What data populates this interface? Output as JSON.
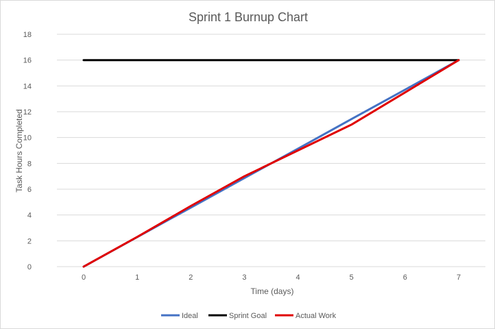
{
  "chart_data": {
    "type": "line",
    "title": "Sprint 1 Burnup Chart",
    "xlabel": "Time (days)",
    "ylabel": "Task Hours Completed",
    "x": [
      0,
      1,
      2,
      3,
      4,
      5,
      6,
      7
    ],
    "xlim": [
      0,
      7
    ],
    "ylim": [
      0,
      18
    ],
    "yticks": [
      0,
      2,
      4,
      6,
      8,
      10,
      12,
      14,
      16,
      18
    ],
    "grid": true,
    "legend_position": "bottom",
    "series": [
      {
        "name": "Ideal",
        "color": "#4472c4",
        "values": [
          0,
          2.29,
          4.57,
          6.86,
          9.14,
          11.43,
          13.71,
          16
        ]
      },
      {
        "name": "Sprint Goal",
        "color": "#000000",
        "values": [
          16,
          16,
          16,
          16,
          16,
          16,
          16,
          16
        ]
      },
      {
        "name": "Actual Work",
        "color": "#e00000",
        "values": [
          0,
          2.3,
          4.7,
          7,
          9,
          11,
          13.5,
          16
        ]
      }
    ]
  }
}
